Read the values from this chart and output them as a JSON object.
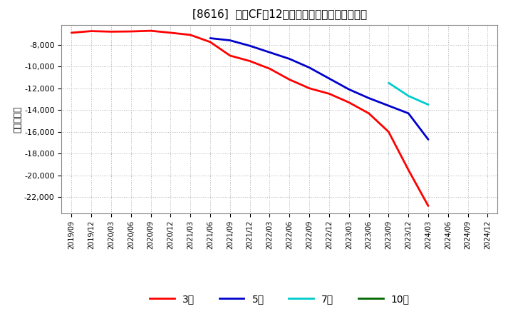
{
  "title": "[8616]  投資CFだ12か月移動合計の平均値の推移",
  "ylabel": "（百万円）",
  "background_color": "#ffffff",
  "plot_background_color": "#ffffff",
  "grid_color": "#aaaaaa",
  "ylim": [
    -23500,
    -6200
  ],
  "yticks": [
    -22000,
    -20000,
    -18000,
    -16000,
    -14000,
    -12000,
    -10000,
    -8000
  ],
  "series": {
    "3year": {
      "label": "3年",
      "color": "#ff0000",
      "data_x": [
        "2019/09",
        "2019/12",
        "2020/03",
        "2020/06",
        "2020/09",
        "2020/12",
        "2021/03",
        "2021/06",
        "2021/09",
        "2021/12",
        "2022/03",
        "2022/06",
        "2022/09",
        "2022/12",
        "2023/03",
        "2023/06",
        "2023/09",
        "2023/12",
        "2024/03"
      ],
      "data_y": [
        -6900,
        -6750,
        -6800,
        -6780,
        -6720,
        -6900,
        -7100,
        -7750,
        -9000,
        -9500,
        -10200,
        -11200,
        -12000,
        -12500,
        -13300,
        -14300,
        -16000,
        -19500,
        -22800
      ]
    },
    "5year": {
      "label": "5年",
      "color": "#0000cc",
      "data_x": [
        "2021/06",
        "2021/09",
        "2021/12",
        "2022/03",
        "2022/06",
        "2022/09",
        "2022/12",
        "2023/03",
        "2023/06",
        "2023/09",
        "2023/12",
        "2024/03"
      ],
      "data_y": [
        -7400,
        -7600,
        -8100,
        -8700,
        -9300,
        -10100,
        -11100,
        -12100,
        -12900,
        -13600,
        -14300,
        -16700
      ]
    },
    "7year": {
      "label": "7年",
      "color": "#00cccc",
      "data_x": [
        "2023/09",
        "2023/12",
        "2024/03"
      ],
      "data_y": [
        -11500,
        -12700,
        -13500
      ]
    },
    "10year": {
      "label": "10年",
      "color": "#006600",
      "data_x": [],
      "data_y": []
    }
  },
  "x_labels": [
    "2019/09",
    "2019/12",
    "2020/03",
    "2020/06",
    "2020/09",
    "2020/12",
    "2021/03",
    "2021/06",
    "2021/09",
    "2021/12",
    "2022/03",
    "2022/06",
    "2022/09",
    "2022/12",
    "2023/03",
    "2023/06",
    "2023/09",
    "2023/12",
    "2024/03",
    "2024/06",
    "2024/09",
    "2024/12"
  ]
}
